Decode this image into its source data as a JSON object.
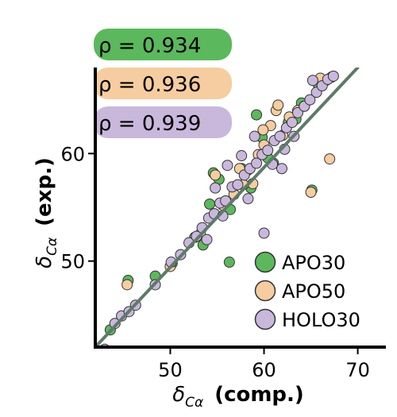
{
  "chart_data": {
    "type": "scatter",
    "xlabel_symbol": "δ",
    "xlabel_sub": "Cα",
    "xlabel_bold": "(comp.)",
    "ylabel_symbol": "δ",
    "ylabel_sub": "Cα",
    "ylabel_bold": "(exp.)",
    "xlim": [
      42,
      73
    ],
    "ylim": [
      42,
      68
    ],
    "x_ticks": [
      50,
      60,
      70
    ],
    "y_ticks": [
      50,
      60
    ],
    "grid": false,
    "legend_position": "bottom-right",
    "fit_line": {
      "x": [
        42,
        70
      ],
      "y": [
        42,
        68
      ]
    },
    "colors": {
      "APO30": "#5cb85c",
      "APO50": "#f5cda0",
      "HOLO30": "#c9b8dc",
      "fit_line": "#5e7a68"
    },
    "correlations": [
      {
        "series": "APO30",
        "label": "ρ = 0.934",
        "color": "#5cb85c"
      },
      {
        "series": "APO50",
        "label": "ρ = 0.936",
        "color": "#f5cda0"
      },
      {
        "series": "HOLO30",
        "label": "ρ = 0.939",
        "color": "#c9b8dc"
      }
    ],
    "series": [
      {
        "name": "APO30",
        "points": [
          [
            43.6,
            43.6
          ],
          [
            45.5,
            48.2
          ],
          [
            50.2,
            49.8
          ],
          [
            53.5,
            51.5
          ],
          [
            54.2,
            55.3
          ],
          [
            54.6,
            58.2
          ],
          [
            55.2,
            57.6
          ],
          [
            56.3,
            49.9
          ],
          [
            58.2,
            58.4
          ],
          [
            59.2,
            63.6
          ],
          [
            59.8,
            61.5
          ],
          [
            60.4,
            59.6
          ],
          [
            61.0,
            59.1
          ],
          [
            62.6,
            62.9
          ],
          [
            63.4,
            63.2
          ],
          [
            64.0,
            64.7
          ],
          [
            65.1,
            56.6
          ],
          [
            65.8,
            66.4
          ],
          [
            66.6,
            66.8
          ],
          [
            67.2,
            67.1
          ],
          [
            57.6,
            58.6
          ],
          [
            58.6,
            56.8
          ],
          [
            56.4,
            54.8
          ],
          [
            52.6,
            52.2
          ],
          [
            48.4,
            48.6
          ]
        ]
      },
      {
        "name": "APO50",
        "points": [
          [
            45.4,
            47.8
          ],
          [
            50.0,
            49.5
          ],
          [
            53.2,
            52.5
          ],
          [
            54.8,
            58.0
          ],
          [
            55.6,
            55.2
          ],
          [
            57.4,
            58.6
          ],
          [
            58.8,
            57.2
          ],
          [
            59.4,
            59.9
          ],
          [
            60.0,
            60.8
          ],
          [
            60.7,
            62.6
          ],
          [
            61.3,
            64.0
          ],
          [
            62.0,
            61.7
          ],
          [
            62.7,
            63.4
          ],
          [
            63.6,
            64.0
          ],
          [
            64.3,
            64.4
          ],
          [
            65.0,
            56.4
          ],
          [
            66.0,
            67.0
          ],
          [
            67.0,
            59.5
          ],
          [
            61.5,
            64.5
          ],
          [
            59.9,
            62.2
          ],
          [
            56.8,
            56.2
          ],
          [
            57.8,
            57.1
          ]
        ]
      },
      {
        "name": "HOLO30",
        "points": [
          [
            43.0,
            41.8
          ],
          [
            44.1,
            44.2
          ],
          [
            44.8,
            44.9
          ],
          [
            45.6,
            45.3
          ],
          [
            46.3,
            45.9
          ],
          [
            48.4,
            47.8
          ],
          [
            50.1,
            49.9
          ],
          [
            51.1,
            50.6
          ],
          [
            52.0,
            51.7
          ],
          [
            52.8,
            52.3
          ],
          [
            53.4,
            53.1
          ],
          [
            54.1,
            54.0
          ],
          [
            54.7,
            54.4
          ],
          [
            55.3,
            55.4
          ],
          [
            55.9,
            55.6
          ],
          [
            56.6,
            56.9
          ],
          [
            57.2,
            57.1
          ],
          [
            57.9,
            58.0
          ],
          [
            58.5,
            58.6
          ],
          [
            59.2,
            59.1
          ],
          [
            59.8,
            59.9
          ],
          [
            60.4,
            60.3
          ],
          [
            61.1,
            61.2
          ],
          [
            61.7,
            61.6
          ],
          [
            62.4,
            62.4
          ],
          [
            63.0,
            62.9
          ],
          [
            63.6,
            63.8
          ],
          [
            64.3,
            64.4
          ],
          [
            64.9,
            65.0
          ],
          [
            65.6,
            65.7
          ],
          [
            66.2,
            66.3
          ],
          [
            66.8,
            66.9
          ],
          [
            67.4,
            67.2
          ],
          [
            60.0,
            52.6
          ],
          [
            61.9,
            58.6
          ],
          [
            56.1,
            58.9
          ],
          [
            58.3,
            55.8
          ],
          [
            54.8,
            56.8
          ],
          [
            53.9,
            52.0
          ],
          [
            57.6,
            59.8
          ],
          [
            62.2,
            60.4
          ],
          [
            59.0,
            61.6
          ],
          [
            60.9,
            59.0
          ],
          [
            55.6,
            54.2
          ],
          [
            65.2,
            66.8
          ],
          [
            63.2,
            61.6
          ]
        ]
      }
    ]
  }
}
